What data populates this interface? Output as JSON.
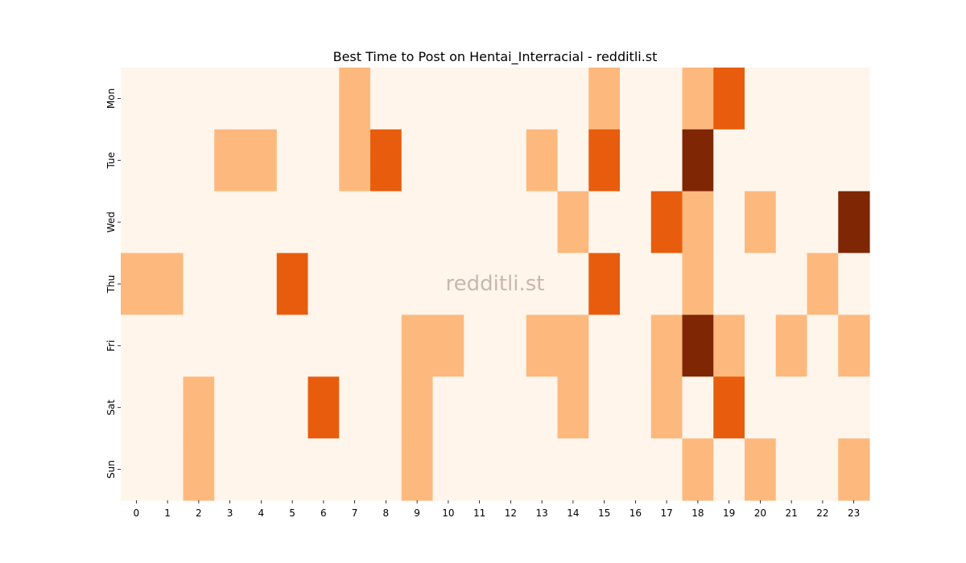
{
  "chart_data": {
    "type": "heatmap",
    "title": "Best Time to Post on Hentai_Interracial - redditli.st",
    "watermark": "redditli.st",
    "x_categories": [
      "0",
      "1",
      "2",
      "3",
      "4",
      "5",
      "6",
      "7",
      "8",
      "9",
      "10",
      "11",
      "12",
      "13",
      "14",
      "15",
      "16",
      "17",
      "18",
      "19",
      "20",
      "21",
      "22",
      "23"
    ],
    "y_categories": [
      "Mon",
      "Tue",
      "Wed",
      "Thu",
      "Fri",
      "Sat",
      "Sun"
    ],
    "color_levels": [
      "#fff5eb",
      "#fdb97d",
      "#e85d0d",
      "#7f2704"
    ],
    "values": [
      [
        0,
        0,
        0,
        0,
        0,
        0,
        0,
        1,
        0,
        0,
        0,
        0,
        0,
        0,
        0,
        1,
        0,
        0,
        1,
        2,
        0,
        0,
        0,
        0
      ],
      [
        0,
        0,
        0,
        1,
        1,
        0,
        0,
        1,
        2,
        0,
        0,
        0,
        0,
        1,
        0,
        2,
        0,
        0,
        3,
        0,
        0,
        0,
        0,
        0
      ],
      [
        0,
        0,
        0,
        0,
        0,
        0,
        0,
        0,
        0,
        0,
        0,
        0,
        0,
        0,
        1,
        0,
        0,
        2,
        1,
        0,
        1,
        0,
        0,
        3
      ],
      [
        1,
        1,
        0,
        0,
        0,
        2,
        0,
        0,
        0,
        0,
        0,
        0,
        0,
        0,
        0,
        2,
        0,
        0,
        1,
        0,
        0,
        0,
        1,
        0
      ],
      [
        0,
        0,
        0,
        0,
        0,
        0,
        0,
        0,
        0,
        1,
        1,
        0,
        0,
        1,
        1,
        0,
        0,
        1,
        3,
        1,
        0,
        1,
        0,
        1
      ],
      [
        0,
        0,
        1,
        0,
        0,
        0,
        2,
        0,
        0,
        1,
        0,
        0,
        0,
        0,
        1,
        0,
        0,
        1,
        0,
        2,
        0,
        0,
        0,
        0
      ],
      [
        0,
        0,
        1,
        0,
        0,
        0,
        0,
        0,
        0,
        1,
        0,
        0,
        0,
        0,
        0,
        0,
        0,
        0,
        1,
        0,
        1,
        0,
        0,
        1
      ]
    ],
    "xlabel": "",
    "ylabel": "",
    "grid": false,
    "colorbar": false
  }
}
